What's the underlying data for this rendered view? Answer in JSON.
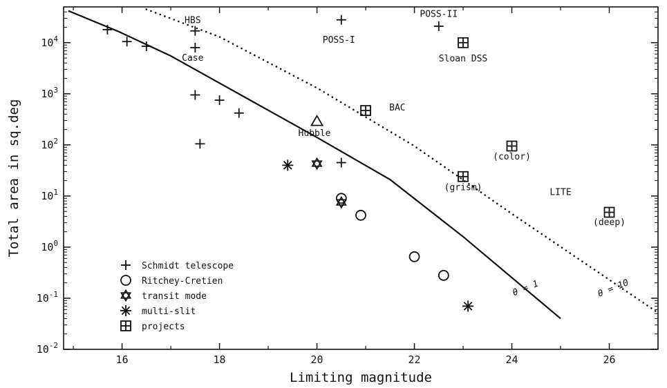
{
  "chart_data": {
    "type": "scatter",
    "title": "",
    "xlabel": "Limiting magnitude",
    "ylabel": "Total area in sq.deg",
    "xlim": [
      14.8,
      27.0
    ],
    "ylim_log10": [
      -2,
      4.7
    ],
    "log_y": true,
    "grid": false,
    "legend_position": "bottom-left",
    "x_ticks": [
      16,
      18,
      20,
      22,
      24,
      26
    ],
    "x_tick_labels": [
      "16",
      "18",
      "20",
      "22",
      "24",
      "26"
    ],
    "y_ticks": [
      {
        "label_base": "10",
        "label_exp": "4",
        "value": 10000
      },
      {
        "label_base": "10",
        "label_exp": "3",
        "value": 1000
      },
      {
        "label_base": "10",
        "label_exp": "2",
        "value": 100
      },
      {
        "label_base": "10",
        "label_exp": "1",
        "value": 10
      },
      {
        "label_base": "10",
        "label_exp": "0",
        "value": 1
      },
      {
        "label_base": "10",
        "label_exp": "-1",
        "value": 0.1
      },
      {
        "label_base": "10",
        "label_exp": "-2",
        "value": 0.01
      }
    ],
    "series": [
      {
        "name": "Schmidt telescope",
        "marker": "plus",
        "points": [
          {
            "x": 15.7,
            "y": 18000
          },
          {
            "x": 16.1,
            "y": 10500
          },
          {
            "x": 16.5,
            "y": 8500
          },
          {
            "x": 17.5,
            "y": 17000
          },
          {
            "x": 17.5,
            "y": 8000
          },
          {
            "x": 20.5,
            "y": 28000
          },
          {
            "x": 22.5,
            "y": 21000
          },
          {
            "x": 17.5,
            "y": 950
          },
          {
            "x": 18.0,
            "y": 750
          },
          {
            "x": 18.4,
            "y": 420
          },
          {
            "x": 17.6,
            "y": 105
          },
          {
            "x": 20.5,
            "y": 45
          }
        ]
      },
      {
        "name": "Ritchey-Cretien",
        "marker": "circle",
        "points": [
          {
            "x": 20.5,
            "y": 9
          },
          {
            "x": 20.9,
            "y": 4.2
          },
          {
            "x": 22.0,
            "y": 0.65
          },
          {
            "x": 22.6,
            "y": 0.28
          }
        ]
      },
      {
        "name": "transit mode",
        "marker": "star",
        "points": [
          {
            "x": 20.0,
            "y": 43
          },
          {
            "x": 20.5,
            "y": 7.5
          }
        ]
      },
      {
        "name": "multi-slit",
        "marker": "asterisk",
        "points": [
          {
            "x": 19.4,
            "y": 40
          },
          {
            "x": 23.1,
            "y": 0.07
          }
        ]
      },
      {
        "name": "projects",
        "marker": "boxplus",
        "points": [
          {
            "x": 23.0,
            "y": 10000
          },
          {
            "x": 21.0,
            "y": 470
          },
          {
            "x": 24.0,
            "y": 95
          },
          {
            "x": 23.0,
            "y": 24
          },
          {
            "x": 26.0,
            "y": 4.8
          }
        ]
      },
      {
        "name": "",
        "marker": "triangle",
        "points": [
          {
            "x": 20.0,
            "y": 290
          }
        ]
      }
    ],
    "lines": [
      {
        "label": "θ = 1",
        "style": "solid",
        "points": [
          [
            14.9,
            42000
          ],
          [
            15.9,
            17000
          ],
          [
            17.0,
            5500
          ],
          [
            18.5,
            880
          ],
          [
            20.0,
            140
          ],
          [
            21.5,
            21
          ],
          [
            23.0,
            1.6
          ],
          [
            25.0,
            0.04
          ]
        ]
      },
      {
        "label": "θ = 10",
        "style": "dotted",
        "points": [
          [
            16.5,
            45000
          ],
          [
            18.0,
            13000
          ],
          [
            20.0,
            1300
          ],
          [
            22.0,
            95
          ],
          [
            24.0,
            4.5
          ],
          [
            27.0,
            0.052
          ]
        ]
      }
    ],
    "line_labels": [
      {
        "text": "θ = 1",
        "x": 24.3,
        "y": 0.14,
        "angle": -22
      },
      {
        "text": "θ = 10",
        "x": 26.1,
        "y": 0.14,
        "angle": -22
      }
    ],
    "annotations": [
      {
        "text": "HBS",
        "x": 17.45,
        "y": 24000
      },
      {
        "text": "Case",
        "x": 17.45,
        "y": 4400
      },
      {
        "text": "POSS-I",
        "x": 20.45,
        "y": 10000
      },
      {
        "text": "POSS-II",
        "x": 22.5,
        "y": 32000
      },
      {
        "text": "Sloan DSS",
        "x": 23.0,
        "y": 4300
      },
      {
        "text": "BAC",
        "x": 21.65,
        "y": 470
      },
      {
        "text": "Hubble",
        "x": 19.95,
        "y": 150
      },
      {
        "text": "(color)",
        "x": 24.0,
        "y": 52
      },
      {
        "text": "(grism)",
        "x": 23.0,
        "y": 13
      },
      {
        "text": "LITE",
        "x": 25.0,
        "y": 10.5
      },
      {
        "text": "(deep)",
        "x": 26.0,
        "y": 2.7
      }
    ],
    "legend": [
      {
        "label": "Schmidt telescope",
        "marker": "plus"
      },
      {
        "label": "Ritchey-Cretien",
        "marker": "circle"
      },
      {
        "label": "transit mode",
        "marker": "star"
      },
      {
        "label": "multi-slit",
        "marker": "asterisk"
      },
      {
        "label": "projects",
        "marker": "boxplus"
      }
    ]
  }
}
